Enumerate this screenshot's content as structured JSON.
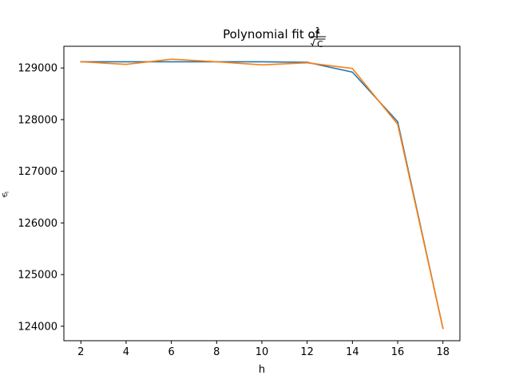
{
  "chart_data": {
    "type": "line",
    "title": {
      "prefix": "Polynomial fit of",
      "numerator": "1",
      "denominator": "C"
    },
    "xlabel": "h",
    "ylabel": "C",
    "xlim": [
      1.25,
      18.75
    ],
    "ylim": [
      123720,
      129420
    ],
    "xticks": [
      2,
      4,
      6,
      8,
      10,
      12,
      14,
      16,
      18
    ],
    "yticks": [
      124000,
      125000,
      126000,
      127000,
      128000,
      129000
    ],
    "x": [
      2,
      4,
      6,
      8,
      10,
      12,
      14,
      16,
      18
    ],
    "series": [
      {
        "color": "#1f77b4",
        "values": [
          129120,
          129120,
          129120,
          129120,
          129120,
          129110,
          128920,
          127960,
          123960
        ]
      },
      {
        "color": "#ff7f0e",
        "values": [
          129120,
          129070,
          129170,
          129120,
          129060,
          129100,
          128990,
          127910,
          123960
        ]
      }
    ],
    "grid": false,
    "legend": "none"
  }
}
